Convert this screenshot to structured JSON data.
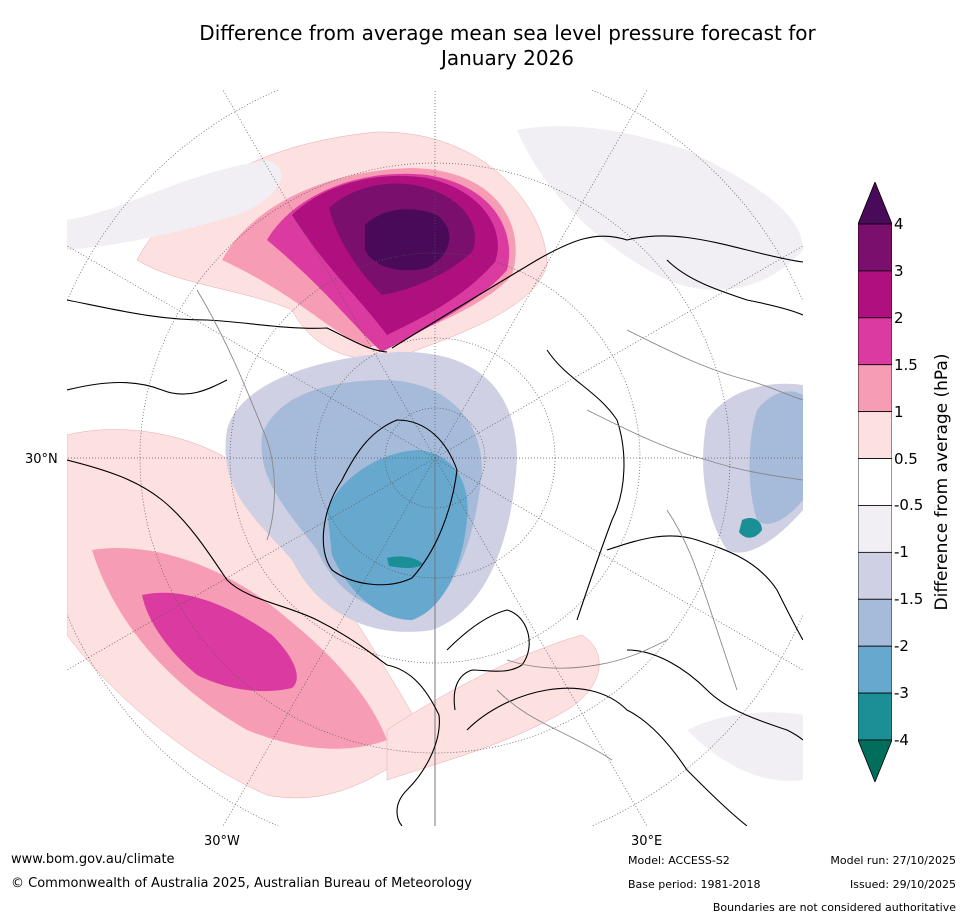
{
  "title_line1": "Difference from average mean sea level pressure forecast for",
  "title_line2": "January 2026",
  "map_labels": {
    "lat_30n": "30°N",
    "lon_30w": "30°W",
    "lon_30e": "30°E"
  },
  "colorbar": {
    "label": "Difference from average (hPa)",
    "ticks": [
      "4",
      "3",
      "2",
      "1.5",
      "1",
      "0.5",
      "-0.5",
      "-1",
      "-1.5",
      "-2",
      "-3",
      "-4"
    ],
    "bins": [
      {
        "from": 4,
        "to": null,
        "color": "#4a0a5a"
      },
      {
        "from": 3,
        "to": 4,
        "color": "#7b0f6e"
      },
      {
        "from": 2,
        "to": 3,
        "color": "#b0107f"
      },
      {
        "from": 1.5,
        "to": 2,
        "color": "#db3ba0"
      },
      {
        "from": 1,
        "to": 1.5,
        "color": "#f79cb5"
      },
      {
        "from": 0.5,
        "to": 1,
        "color": "#fde0e0"
      },
      {
        "from": -0.5,
        "to": 0.5,
        "color": "#ffffff"
      },
      {
        "from": -1,
        "to": -0.5,
        "color": "#f1eef4"
      },
      {
        "from": -1.5,
        "to": -1,
        "color": "#cfd0e4"
      },
      {
        "from": -2,
        "to": -1.5,
        "color": "#a6bbd9"
      },
      {
        "from": -3,
        "to": -2,
        "color": "#67a8cf"
      },
      {
        "from": -4,
        "to": -3,
        "color": "#1b8f96"
      },
      {
        "from": null,
        "to": -4,
        "color": "#006e5a"
      }
    ]
  },
  "footer": {
    "website": "www.bom.gov.au/climate",
    "copyright": "© Commonwealth of Australia 2025, Australian Bureau of Meteorology",
    "model": "Model: ACCESS-S2",
    "base_period": "Base period: 1981-2018",
    "model_run": "Model run: 27/10/2025",
    "issued": "Issued: 29/10/2025",
    "disclaimer": "Boundaries are not considered authoritative"
  }
}
